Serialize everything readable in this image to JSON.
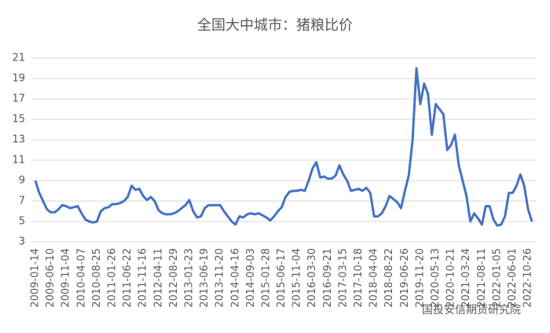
{
  "chart_data": {
    "type": "line",
    "title": "全国大中城市：猪粮比价",
    "watermark": "国投安信期货研究院",
    "categories": [
      "2009-01-14",
      null,
      null,
      null,
      "2009-06-10",
      null,
      null,
      null,
      "2009-11-04",
      null,
      null,
      null,
      "2010-04-07",
      null,
      null,
      null,
      "2010-08-25",
      null,
      null,
      null,
      "2011-01-26",
      null,
      null,
      null,
      "2011-06-22",
      null,
      null,
      null,
      "2011-11-16",
      null,
      null,
      null,
      "2012-04-11",
      null,
      null,
      null,
      "2012-08-29",
      null,
      null,
      null,
      "2013-01-23",
      null,
      null,
      null,
      "2013-06-19",
      null,
      null,
      null,
      "2013-11-20",
      null,
      null,
      null,
      "2014-04-16",
      null,
      null,
      null,
      "2014-09-03",
      null,
      null,
      null,
      "2015-01-28",
      null,
      null,
      null,
      "2015-06-17",
      null,
      null,
      null,
      "2015-11-04",
      null,
      null,
      null,
      "2016-03-30",
      null,
      null,
      null,
      "2016-09-21",
      null,
      null,
      null,
      "2017-03-15",
      null,
      null,
      null,
      "2017-10-18",
      null,
      null,
      null,
      "2018-04-04",
      null,
      null,
      null,
      "2018-08-22",
      null,
      null,
      null,
      "2019-06-26",
      null,
      null,
      null,
      "2019-11-20",
      null,
      null,
      null,
      "2020-05-13",
      null,
      null,
      null,
      "2020-10-21",
      null,
      null,
      null,
      "2021-03-24",
      null,
      null,
      null,
      "2021-08-11",
      null,
      null,
      null,
      "2022-01-05",
      null,
      null,
      null,
      "2022-06-01",
      null,
      null,
      null,
      "2022-10-26",
      null
    ],
    "series": [
      {
        "color": "#4472c4",
        "values": [
          9.0,
          7.8,
          7.0,
          6.2,
          5.9,
          5.9,
          6.2,
          6.6,
          6.5,
          6.3,
          6.4,
          6.5,
          5.8,
          5.2,
          5.0,
          4.9,
          5.0,
          6.0,
          6.3,
          6.4,
          6.7,
          6.7,
          6.8,
          7.0,
          7.4,
          8.5,
          8.1,
          8.2,
          7.5,
          7.1,
          7.4,
          7.0,
          6.1,
          5.8,
          5.7,
          5.7,
          5.8,
          6.0,
          6.3,
          6.6,
          7.1,
          6.0,
          5.4,
          5.5,
          6.3,
          6.6,
          6.6,
          6.6,
          6.6,
          6.0,
          5.5,
          5.0,
          4.7,
          5.5,
          5.4,
          5.7,
          5.8,
          5.7,
          5.8,
          5.6,
          5.4,
          5.1,
          5.5,
          6.0,
          6.4,
          7.4,
          7.9,
          8.0,
          8.0,
          8.1,
          8.0,
          9.0,
          10.2,
          10.8,
          9.3,
          9.4,
          9.2,
          9.2,
          9.5,
          10.5,
          9.6,
          9.0,
          8.0,
          8.1,
          8.2,
          8.0,
          8.3,
          7.8,
          5.5,
          5.5,
          5.8,
          6.5,
          7.5,
          7.2,
          6.9,
          6.3,
          8.0,
          9.5,
          13.0,
          20.0,
          16.5,
          18.5,
          17.5,
          13.5,
          16.5,
          16.0,
          15.5,
          12.0,
          12.5,
          13.5,
          10.5,
          9.0,
          7.5,
          5.0,
          5.8,
          5.3,
          4.7,
          6.5,
          6.5,
          5.2,
          4.6,
          4.7,
          5.5,
          7.8,
          7.8,
          8.5,
          9.6,
          8.5,
          6.2,
          5.0
        ]
      }
    ],
    "ylim": [
      3,
      21
    ],
    "yticks": [
      3,
      5,
      7,
      9,
      11,
      13,
      15,
      17,
      19,
      21
    ],
    "grid": true
  }
}
